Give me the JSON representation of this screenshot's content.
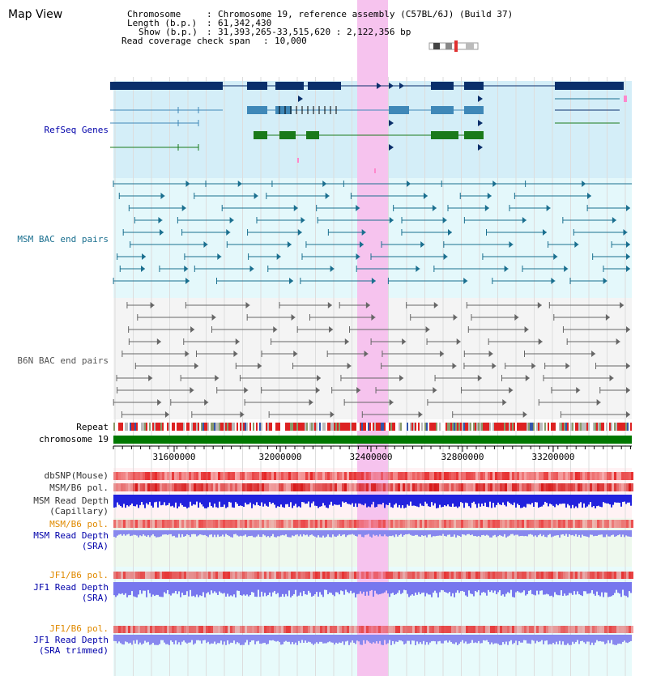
{
  "view_title": "Map View",
  "header": {
    "rows": [
      {
        "key": "Chromosome",
        "value": "Chromosome 19, reference assembly (C57BL/6J) (Build 37)"
      },
      {
        "key": "Length (b.p.)",
        "value": "61,342,430"
      },
      {
        "key": "Show (b.p.)",
        "value": "31,393,265-33,515,620 : 2,122,356 bp"
      },
      {
        "key": "Read coverage check span",
        "value": "10,000"
      }
    ]
  },
  "tracks": {
    "refseq": "RefSeq Genes",
    "msm_bac": "MSM BAC end pairs",
    "b6n_bac": "B6N BAC end pairs",
    "repeat": "Repeat",
    "chromosome": "chromosome 19",
    "dbsnp": "dbSNP(Mouse)",
    "msm_b6_pol_1": "MSM/B6 pol.",
    "msm_depth_cap_1": "MSM Read Depth",
    "msm_depth_cap_2": "(Capillary)",
    "msm_b6_pol_2": "MSM/B6 pol.",
    "msm_depth_sra_1": "MSM Read Depth",
    "msm_depth_sra_2": "(SRA)",
    "jf1_b6_pol_1": "JF1/B6 pol.",
    "jf1_depth_sra_1": "JF1 Read Depth",
    "jf1_depth_sra_2": "(SRA)",
    "jf1_b6_pol_2": "JF1/B6 pol.",
    "jf1_depth_trim_1": "JF1 Read Depth",
    "jf1_depth_trim_2": "(SRA trimmed)"
  },
  "axis": {
    "ticks": [
      "31600000",
      "32000000",
      "32400000",
      "32800000",
      "33200000"
    ]
  },
  "colors": {
    "gene_dark": "#0a2f6b",
    "gene_mid": "#3f88b8",
    "gene_green": "#1a7a1a",
    "msm_bac": "#1a6f8f",
    "b6n_bac": "#666666",
    "highlight": "#f6c8ef",
    "chromosome_bar": "#007700",
    "label_blue": "#0000aa",
    "label_teal": "#1a6f8f",
    "label_orange": "#e08a00"
  }
}
